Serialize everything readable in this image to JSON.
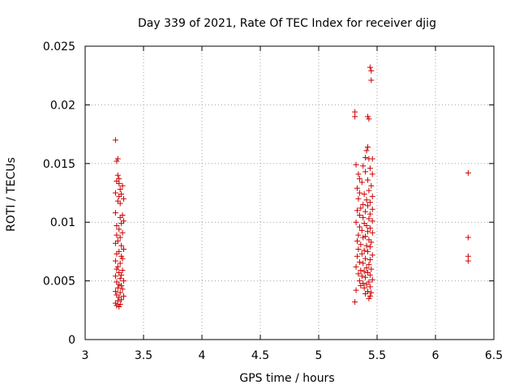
{
  "chart_data": {
    "type": "scatter",
    "title": "Day 339 of 2021, Rate Of TEC Index for receiver djig",
    "xlabel": "GPS time / hours",
    "ylabel": "ROTI / TECUs",
    "xlim": [
      3,
      6.5
    ],
    "ylim": [
      0,
      0.025
    ],
    "x_ticks": [
      "3",
      "3.5",
      "4",
      "4.5",
      "5",
      "5.5",
      "6",
      "6.5"
    ],
    "y_ticks": [
      "0",
      "0.005",
      "0.01",
      "0.015",
      "0.02",
      "0.025"
    ],
    "grid": true,
    "marker": "plus",
    "color": "#cc0000",
    "series": [
      {
        "points": [
          [
            3.26,
            0.017
          ],
          [
            3.28,
            0.0154
          ],
          [
            3.27,
            0.0152
          ],
          [
            3.28,
            0.014
          ],
          [
            3.29,
            0.0137
          ],
          [
            3.27,
            0.0135
          ],
          [
            3.29,
            0.0133
          ],
          [
            3.32,
            0.0131
          ],
          [
            3.3,
            0.0128
          ],
          [
            3.26,
            0.0125
          ],
          [
            3.31,
            0.0124
          ],
          [
            3.29,
            0.0122
          ],
          [
            3.33,
            0.012
          ],
          [
            3.28,
            0.0118
          ],
          [
            3.3,
            0.0116
          ],
          [
            3.26,
            0.0108
          ],
          [
            3.32,
            0.0106
          ],
          [
            3.3,
            0.0104
          ],
          [
            3.33,
            0.0101
          ],
          [
            3.31,
            0.0099
          ],
          [
            3.27,
            0.0097
          ],
          [
            3.29,
            0.0094
          ],
          [
            3.32,
            0.0091
          ],
          [
            3.27,
            0.0089
          ],
          [
            3.3,
            0.0087
          ],
          [
            3.28,
            0.0084
          ],
          [
            3.26,
            0.0082
          ],
          [
            3.31,
            0.008
          ],
          [
            3.33,
            0.0077
          ],
          [
            3.29,
            0.0075
          ],
          [
            3.27,
            0.0073
          ],
          [
            3.31,
            0.0071
          ],
          [
            3.32,
            0.0069
          ],
          [
            3.26,
            0.0067
          ],
          [
            3.3,
            0.0065
          ],
          [
            3.28,
            0.0062
          ],
          [
            3.27,
            0.006
          ],
          [
            3.32,
            0.0059
          ],
          [
            3.29,
            0.0057
          ],
          [
            3.31,
            0.0055
          ],
          [
            3.26,
            0.0054
          ],
          [
            3.3,
            0.0052
          ],
          [
            3.33,
            0.005
          ],
          [
            3.27,
            0.0049
          ],
          [
            3.29,
            0.0047
          ],
          [
            3.31,
            0.0046
          ],
          [
            3.28,
            0.0044
          ],
          [
            3.32,
            0.0043
          ],
          [
            3.26,
            0.0041
          ],
          [
            3.3,
            0.004
          ],
          [
            3.27,
            0.0038
          ],
          [
            3.33,
            0.0037
          ],
          [
            3.29,
            0.0036
          ],
          [
            3.31,
            0.0034
          ],
          [
            3.28,
            0.0033
          ],
          [
            3.26,
            0.0031
          ],
          [
            3.3,
            0.003
          ],
          [
            3.27,
            0.0029
          ],
          [
            3.29,
            0.0028
          ],
          [
            5.44,
            0.0232
          ],
          [
            5.45,
            0.0229
          ],
          [
            5.45,
            0.0221
          ],
          [
            5.31,
            0.0194
          ],
          [
            5.31,
            0.019
          ],
          [
            5.42,
            0.019
          ],
          [
            5.43,
            0.0188
          ],
          [
            5.42,
            0.0164
          ],
          [
            5.41,
            0.0161
          ],
          [
            5.4,
            0.0155
          ],
          [
            5.43,
            0.0154
          ],
          [
            5.46,
            0.0154
          ],
          [
            5.32,
            0.0149
          ],
          [
            5.38,
            0.0148
          ],
          [
            5.44,
            0.0146
          ],
          [
            5.4,
            0.0143
          ],
          [
            5.34,
            0.0141
          ],
          [
            5.46,
            0.0141
          ],
          [
            5.35,
            0.0137
          ],
          [
            5.42,
            0.0136
          ],
          [
            5.37,
            0.0134
          ],
          [
            5.45,
            0.0131
          ],
          [
            5.33,
            0.0129
          ],
          [
            5.43,
            0.0127
          ],
          [
            5.35,
            0.0125
          ],
          [
            5.39,
            0.0124
          ],
          [
            5.46,
            0.0122
          ],
          [
            5.34,
            0.012
          ],
          [
            5.41,
            0.0119
          ],
          [
            5.44,
            0.0117
          ],
          [
            5.38,
            0.0115
          ],
          [
            5.42,
            0.0114
          ],
          [
            5.36,
            0.0112
          ],
          [
            5.46,
            0.0111
          ],
          [
            5.33,
            0.011
          ],
          [
            5.4,
            0.0109
          ],
          [
            5.44,
            0.0107
          ],
          [
            5.35,
            0.0106
          ],
          [
            5.38,
            0.0104
          ],
          [
            5.43,
            0.0103
          ],
          [
            5.46,
            0.0101
          ],
          [
            5.32,
            0.01
          ],
          [
            5.39,
            0.0099
          ],
          [
            5.41,
            0.0097
          ],
          [
            5.35,
            0.0096
          ],
          [
            5.44,
            0.0095
          ],
          [
            5.37,
            0.0093
          ],
          [
            5.42,
            0.0092
          ],
          [
            5.46,
            0.0091
          ],
          [
            5.34,
            0.0089
          ],
          [
            5.4,
            0.0088
          ],
          [
            5.38,
            0.0087
          ],
          [
            5.43,
            0.0085
          ],
          [
            5.33,
            0.0084
          ],
          [
            5.45,
            0.0083
          ],
          [
            5.36,
            0.0081
          ],
          [
            5.41,
            0.008
          ],
          [
            5.44,
            0.0079
          ],
          [
            5.34,
            0.0077
          ],
          [
            5.39,
            0.0076
          ],
          [
            5.42,
            0.0075
          ],
          [
            5.37,
            0.0073
          ],
          [
            5.46,
            0.0072
          ],
          [
            5.33,
            0.0071
          ],
          [
            5.4,
            0.0069
          ],
          [
            5.44,
            0.0068
          ],
          [
            5.35,
            0.0066
          ],
          [
            5.38,
            0.0065
          ],
          [
            5.43,
            0.0064
          ],
          [
            5.32,
            0.0062
          ],
          [
            5.41,
            0.0061
          ],
          [
            5.45,
            0.006
          ],
          [
            5.36,
            0.0059
          ],
          [
            5.39,
            0.0058
          ],
          [
            5.42,
            0.0057
          ],
          [
            5.34,
            0.0056
          ],
          [
            5.44,
            0.0055
          ],
          [
            5.37,
            0.0054
          ],
          [
            5.4,
            0.0053
          ],
          [
            5.46,
            0.0051
          ],
          [
            5.35,
            0.005
          ],
          [
            5.43,
            0.0049
          ],
          [
            5.38,
            0.0048
          ],
          [
            5.41,
            0.0047
          ],
          [
            5.36,
            0.0046
          ],
          [
            5.44,
            0.0045
          ],
          [
            5.39,
            0.0044
          ],
          [
            5.32,
            0.0042
          ],
          [
            5.42,
            0.0041
          ],
          [
            5.45,
            0.004
          ],
          [
            5.4,
            0.0039
          ],
          [
            5.44,
            0.0037
          ],
          [
            5.43,
            0.0035
          ],
          [
            5.31,
            0.0032
          ],
          [
            6.28,
            0.0142
          ],
          [
            6.28,
            0.0087
          ],
          [
            6.28,
            0.0071
          ],
          [
            6.28,
            0.0067
          ]
        ]
      }
    ]
  }
}
